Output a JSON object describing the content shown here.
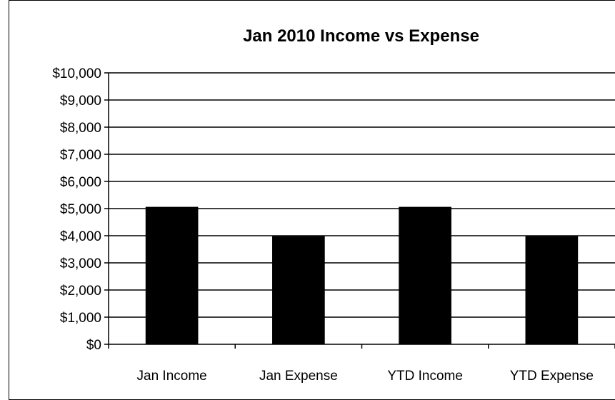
{
  "chart_data": {
    "type": "bar",
    "title": "Jan 2010 Income vs Expense",
    "xlabel": "",
    "ylabel": "",
    "categories": [
      "Jan Income",
      "Jan Expense",
      "YTD Income",
      "YTD Expense"
    ],
    "values": [
      5050,
      3970,
      5050,
      3970
    ],
    "ylim": [
      0,
      10000
    ],
    "yticks": [
      0,
      1000,
      2000,
      3000,
      4000,
      5000,
      6000,
      7000,
      8000,
      9000,
      10000
    ],
    "ytick_labels": [
      "$0",
      "$1,000",
      "$2,000",
      "$3,000",
      "$4,000",
      "$5,000",
      "$6,000",
      "$7,000",
      "$8,000",
      "$9,000",
      "$10,000"
    ],
    "grid": true,
    "legend": "none",
    "bar_color": "#000000",
    "gridline_color": "#000000",
    "background_color": "#ffffff"
  }
}
